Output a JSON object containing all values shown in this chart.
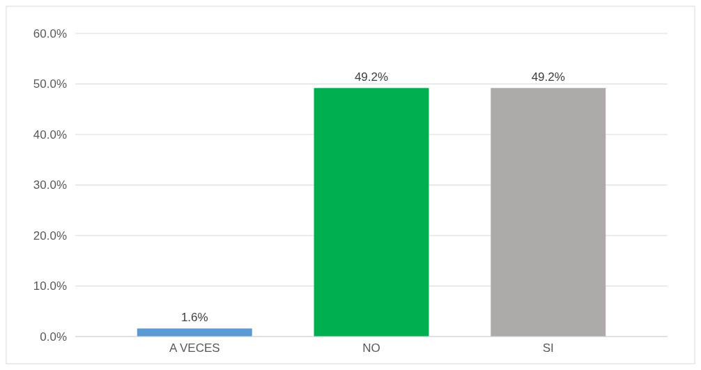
{
  "chart_data": {
    "type": "bar",
    "categories": [
      "A VECES",
      "NO",
      "SI"
    ],
    "values": [
      1.6,
      49.2,
      49.2
    ],
    "colors": [
      "#5b9bd5",
      "#00b050",
      "#aeaaaa"
    ],
    "value_labels": [
      "1.6%",
      "49.2%",
      "49.2%"
    ],
    "ylim": [
      0,
      60
    ],
    "yticks": [
      {
        "value": 0,
        "label": "0.0%"
      },
      {
        "value": 10,
        "label": "10.0%"
      },
      {
        "value": 20,
        "label": "20.0%"
      },
      {
        "value": 30,
        "label": "30.0%"
      },
      {
        "value": 40,
        "label": "40.0%"
      },
      {
        "value": 50,
        "label": "50.0%"
      },
      {
        "value": 60,
        "label": "60.0%"
      }
    ],
    "grid": "y"
  }
}
